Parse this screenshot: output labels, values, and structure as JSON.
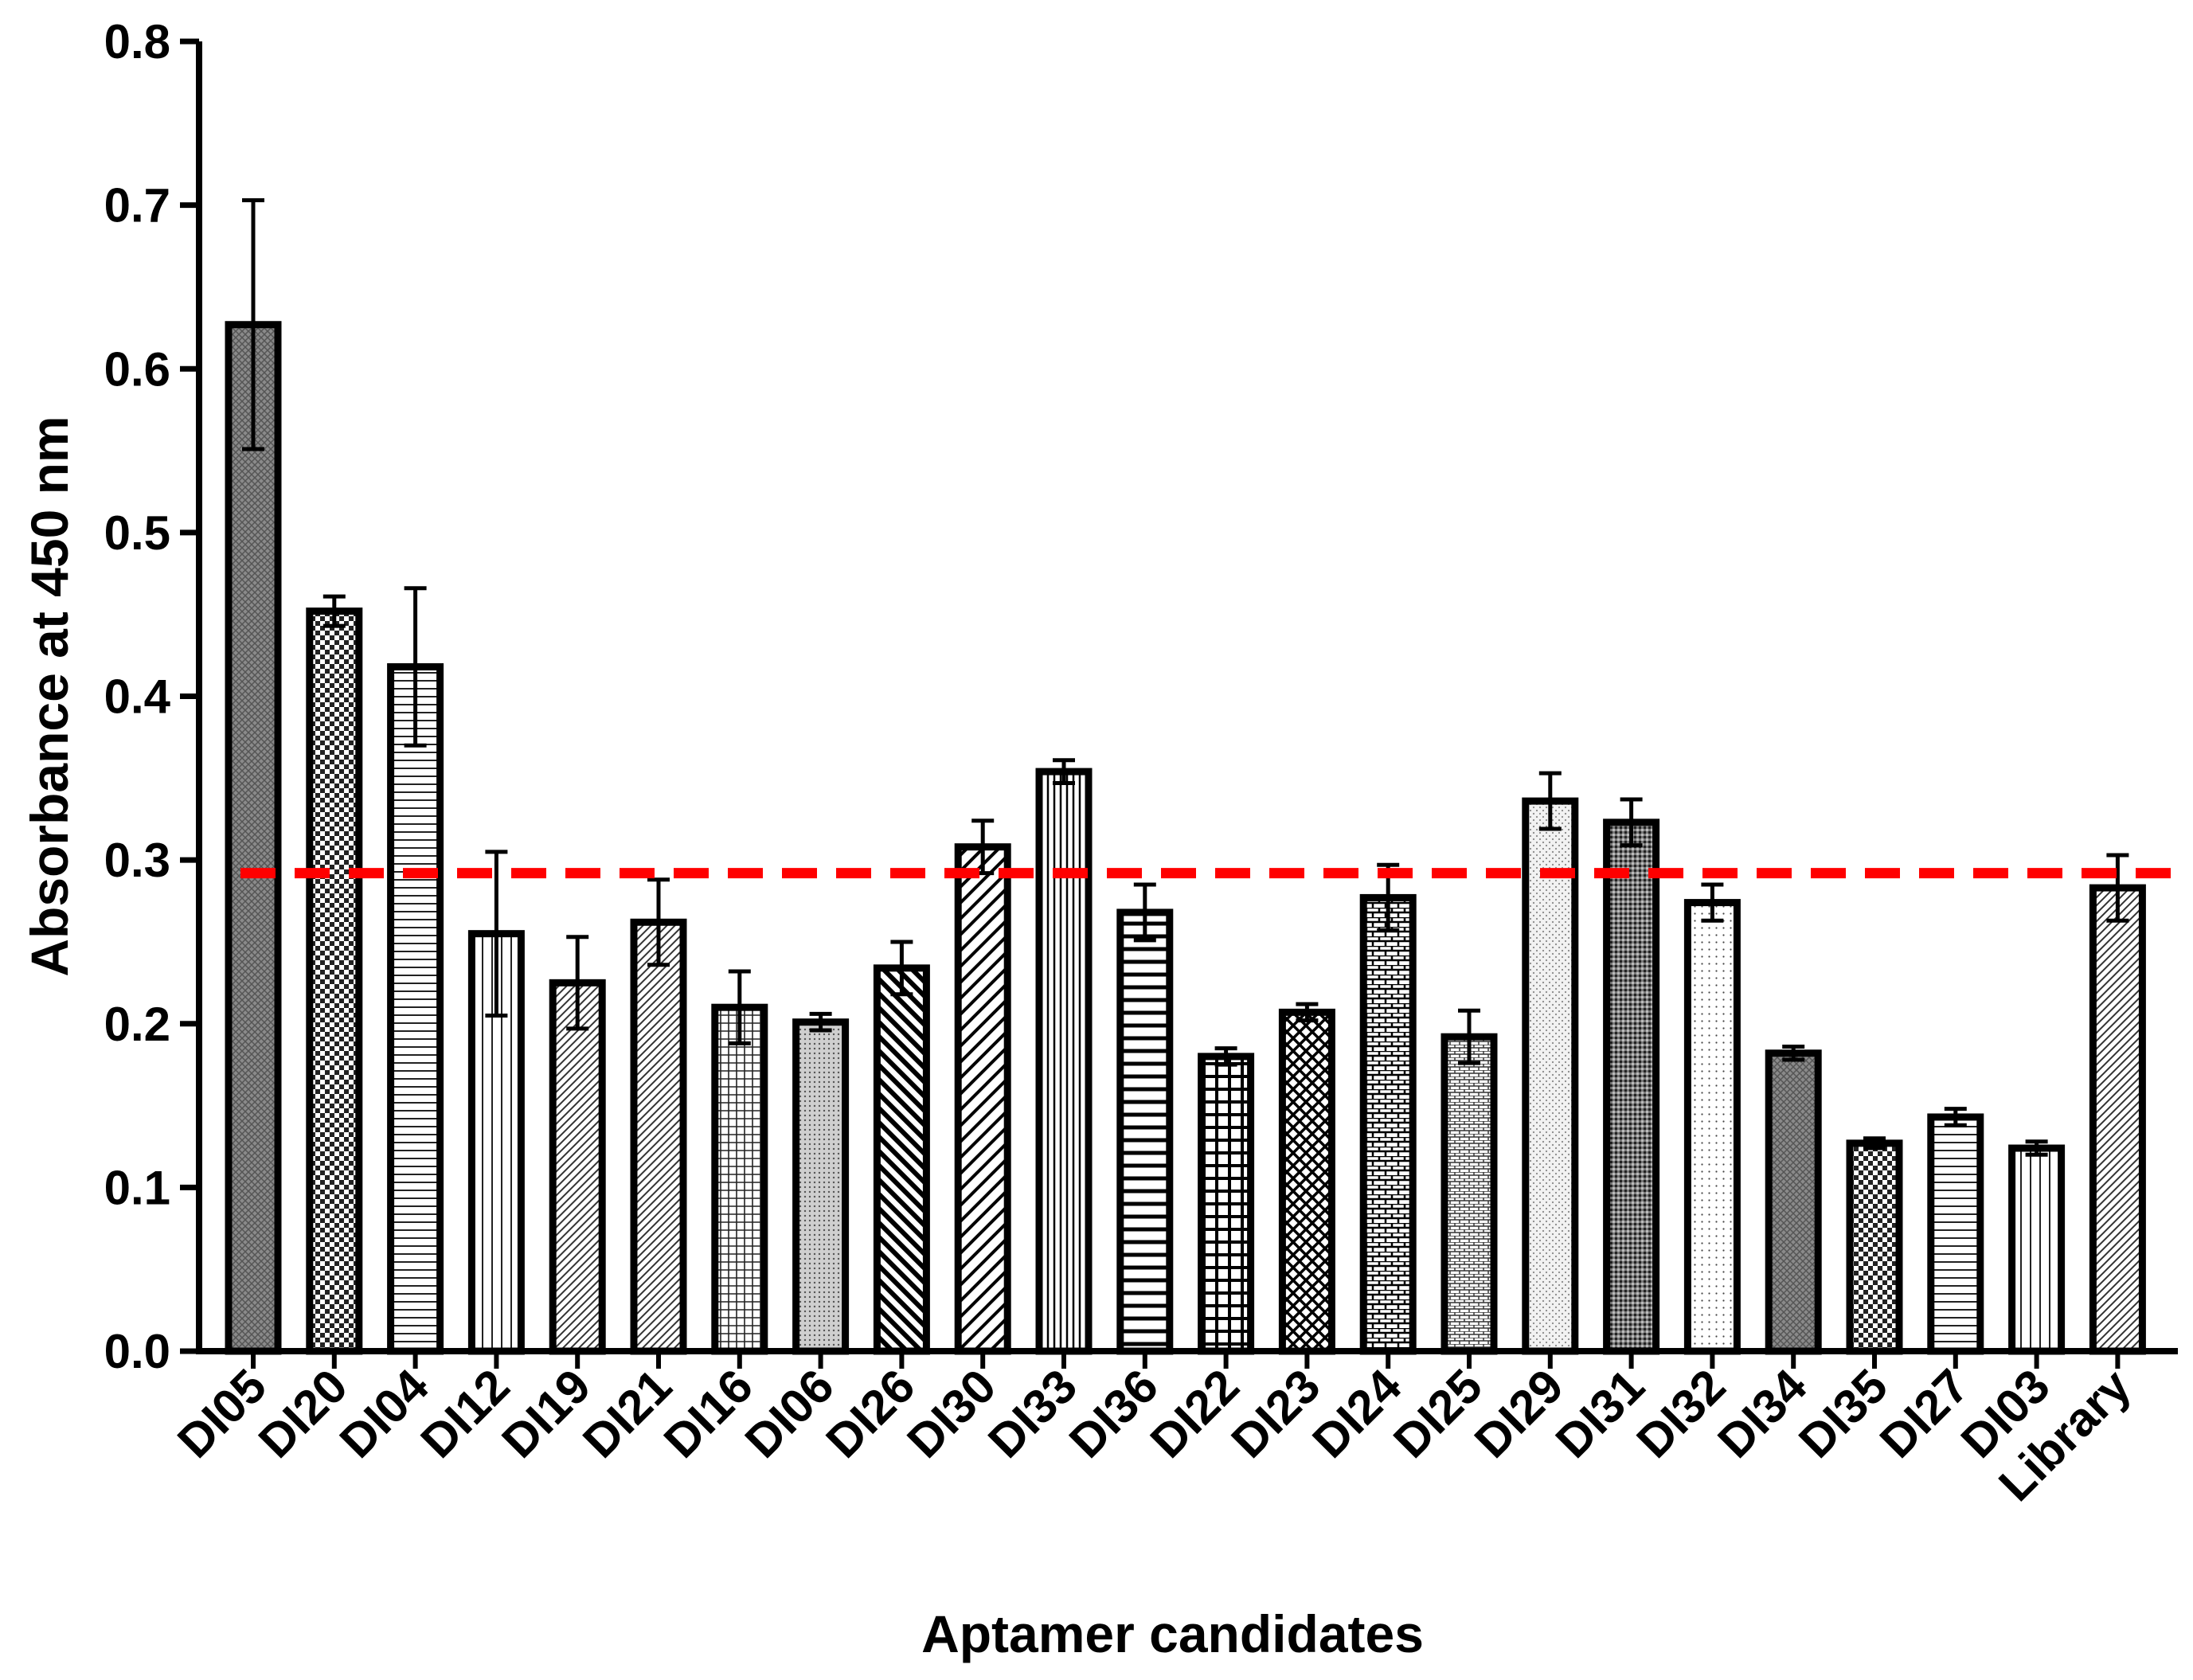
{
  "chart_data": {
    "type": "bar",
    "xlabel": "Aptamer candidates",
    "ylabel": "Absorbance at 450 nm",
    "ylim": [
      0,
      0.8
    ],
    "yticks": [
      "0.0",
      "0.1",
      "0.2",
      "0.3",
      "0.4",
      "0.5",
      "0.6",
      "0.7",
      "0.8"
    ],
    "categories": [
      "DI05",
      "DI20",
      "DI04",
      "DI12",
      "DI19",
      "DI21",
      "DI16",
      "DI06",
      "DI26",
      "DI30",
      "DI33",
      "DI36",
      "DI22",
      "DI23",
      "DI24",
      "DI25",
      "DI29",
      "DI31",
      "DI32",
      "DI34",
      "DI35",
      "DI27",
      "DI03",
      "Library"
    ],
    "values": [
      0.627,
      0.452,
      0.418,
      0.255,
      0.225,
      0.262,
      0.21,
      0.201,
      0.234,
      0.308,
      0.354,
      0.268,
      0.18,
      0.207,
      0.277,
      0.192,
      0.336,
      0.323,
      0.274,
      0.182,
      0.127,
      0.143,
      0.124,
      0.283
    ],
    "errors": [
      0.076,
      0.009,
      0.048,
      0.05,
      0.028,
      0.026,
      0.022,
      0.005,
      0.016,
      0.016,
      0.007,
      0.017,
      0.005,
      0.005,
      0.02,
      0.016,
      0.017,
      0.014,
      0.011,
      0.004,
      0.003,
      0.005,
      0.004,
      0.02
    ],
    "patterns": [
      "dense-grey",
      "checker",
      "hlines",
      "vlines",
      "diag-fwd-fine",
      "diag-fwd-fine",
      "grid",
      "dots-grey",
      "diag-back",
      "diag-fwd-wide",
      "vlines-dense",
      "hlines-wide",
      "grid-coarse",
      "crosshatch",
      "brick",
      "brick-fine",
      "dots-light",
      "dense-dots",
      "dots-sparse",
      "dense-grey",
      "checker",
      "hlines",
      "vlines",
      "diag-fwd-fine"
    ],
    "threshold": 0.292,
    "threshold_color": "#ff0000",
    "bar_color": "#000000",
    "grid": false,
    "legend": "none"
  }
}
